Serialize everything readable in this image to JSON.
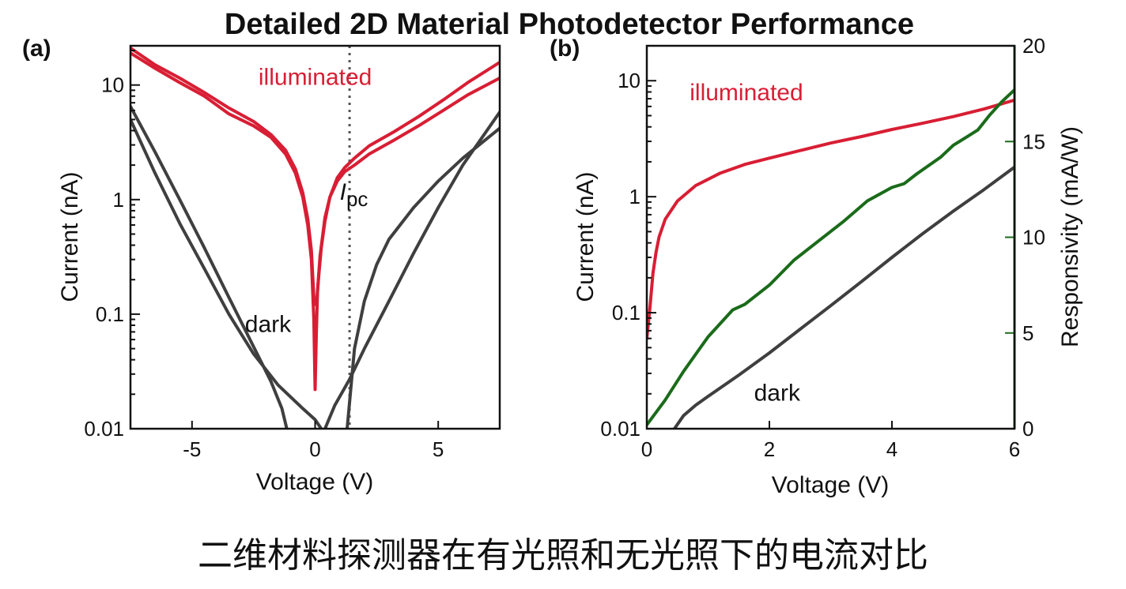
{
  "title": "Detailed 2D Material Photodetector Performance",
  "caption": "二维材料探测器在有光照和无光照下的电流对比",
  "colors": {
    "illuminated": "#d81e34",
    "dark": "#3f3f3f",
    "responsivity": "#1a6b1a",
    "axis": "#111111",
    "marker_line": "#555555"
  },
  "chart_data": [
    {
      "panel": "(a)",
      "type": "line",
      "xlabel": "Voltage (V)",
      "ylabel": "Current (nA)",
      "xlim": [
        -7.5,
        7.5
      ],
      "ylim": [
        0.01,
        22
      ],
      "yscale": "log",
      "xticks": [
        -5,
        0,
        5
      ],
      "xtick_labels": [
        "-5",
        "0",
        "5"
      ],
      "yticks": [
        0.01,
        0.1,
        1,
        10
      ],
      "ytick_labels": [
        "0.01",
        "0.1",
        "1",
        "10"
      ],
      "annotations": [
        {
          "id": "illuminated",
          "text": "illuminated",
          "x": -2.3,
          "y": 10,
          "color": "#d81e34"
        },
        {
          "id": "dark",
          "text": "dark",
          "x": -2.85,
          "y": 0.07,
          "color": "#111111"
        },
        {
          "id": "ipc",
          "text": "I",
          "subscript": "pc",
          "x": 1.0,
          "y": 1.0,
          "color": "#111111"
        }
      ],
      "vline": {
        "x": 1.4,
        "style": "dotted"
      },
      "series": [
        {
          "color": "#d81e34",
          "x": [
            -7.5,
            -6.5,
            -5.5,
            -4.5,
            -3.5,
            -2.5,
            -1.8,
            -1.2,
            -0.8,
            -0.5,
            -0.3,
            -0.15,
            -0.05,
            0.0,
            0.05,
            0.1,
            0.2,
            0.4,
            0.6,
            0.9,
            1.2,
            1.6,
            2.2,
            3.2,
            4.2,
            5.2,
            6.2,
            7.5
          ],
          "y": [
            19,
            14,
            10.5,
            8,
            5.6,
            4.4,
            3.5,
            2.5,
            1.7,
            1.05,
            0.6,
            0.3,
            0.09,
            0.022,
            0.07,
            0.16,
            0.32,
            0.7,
            1.05,
            1.45,
            1.75,
            2.0,
            2.5,
            3.3,
            4.4,
            6.0,
            8.2,
            11.5
          ]
        },
        {
          "color": "#d81e34",
          "x": [
            -7.5,
            -6.5,
            -5.5,
            -4.5,
            -3.5,
            -2.5,
            -1.8,
            -1.2,
            -0.8,
            -0.5,
            -0.3,
            -0.15,
            -0.05,
            0.05,
            0.15,
            0.25,
            0.4,
            0.6,
            0.9,
            1.2,
            1.6,
            2.2,
            3.2,
            4.2,
            5.2,
            6.2,
            7.5
          ],
          "y": [
            21,
            15,
            11.5,
            8.6,
            6.3,
            4.8,
            3.7,
            2.7,
            1.85,
            1.15,
            0.68,
            0.36,
            0.14,
            0.12,
            0.22,
            0.38,
            0.65,
            1.05,
            1.55,
            1.9,
            2.3,
            2.95,
            3.9,
            5.3,
            7.4,
            10.5,
            15.8
          ]
        },
        {
          "color": "#3f3f3f",
          "x": [
            -7.5,
            -6.5,
            -5.5,
            -4.5,
            -3.5,
            -2.5,
            -1.8,
            -1.35,
            -1.15
          ],
          "y": [
            6.5,
            2.6,
            1.0,
            0.38,
            0.14,
            0.052,
            0.026,
            0.015,
            0.01
          ]
        },
        {
          "color": "#3f3f3f",
          "x": [
            -7.5,
            -6.5,
            -5.5,
            -4.5,
            -3.5,
            -2.5,
            -1.5,
            -0.5,
            0.0,
            0.25
          ],
          "y": [
            5.0,
            1.7,
            0.62,
            0.25,
            0.1,
            0.045,
            0.024,
            0.015,
            0.012,
            0.01
          ]
        },
        {
          "color": "#3f3f3f",
          "x": [
            0.4,
            0.8,
            1.4,
            2.0,
            3.0,
            4.0,
            5.0,
            6.0,
            7.5
          ],
          "y": [
            0.01,
            0.016,
            0.027,
            0.05,
            0.13,
            0.34,
            0.85,
            2.0,
            5.8
          ]
        },
        {
          "color": "#3f3f3f",
          "x": [
            1.3,
            1.6,
            2.0,
            2.5,
            3.0,
            4.0,
            5.0,
            6.0,
            7.5
          ],
          "y": [
            0.01,
            0.05,
            0.13,
            0.27,
            0.45,
            0.85,
            1.45,
            2.3,
            4.2
          ]
        }
      ]
    },
    {
      "panel": "(b)",
      "type": "line",
      "xlabel": "Voltage (V)",
      "ylabel": "Current (nA)",
      "y2label": "Responsivity (mA/W)",
      "xlim": [
        0,
        6
      ],
      "ylim": [
        0.01,
        20
      ],
      "yscale": "log",
      "y2lim": [
        0,
        20
      ],
      "xticks": [
        0,
        2,
        4,
        6
      ],
      "xtick_labels": [
        "0",
        "2",
        "4",
        "6"
      ],
      "yticks": [
        0.01,
        0.1,
        1,
        10
      ],
      "ytick_labels": [
        "0.01",
        "0.1",
        "1",
        "10"
      ],
      "y2ticks": [
        0,
        5,
        10,
        15,
        20
      ],
      "y2tick_labels": [
        "0",
        "5",
        "10",
        "15",
        "20"
      ],
      "annotations": [
        {
          "id": "illuminated",
          "text": "illuminated",
          "x": 0.7,
          "y": 6.8,
          "color": "#d81e34"
        },
        {
          "id": "dark",
          "text": "dark",
          "x": 1.75,
          "y": 0.0175,
          "color": "#111111"
        }
      ],
      "series": [
        {
          "color": "#d81e34",
          "axis": "y",
          "x": [
            0.0,
            0.05,
            0.1,
            0.15,
            0.2,
            0.3,
            0.5,
            0.8,
            1.2,
            1.6,
            2.0,
            2.5,
            3.0,
            3.5,
            4.0,
            4.5,
            5.0,
            5.5,
            6.0
          ],
          "y": [
            0.06,
            0.11,
            0.22,
            0.33,
            0.45,
            0.64,
            0.92,
            1.25,
            1.6,
            1.9,
            2.15,
            2.5,
            2.9,
            3.3,
            3.8,
            4.3,
            4.9,
            5.7,
            6.8
          ]
        },
        {
          "color": "#3f3f3f",
          "axis": "y",
          "x": [
            0.45,
            0.6,
            0.8,
            1.0,
            1.5,
            2.0,
            2.5,
            3.0,
            3.5,
            4.0,
            4.5,
            5.0,
            5.5,
            6.0
          ],
          "y": [
            0.01,
            0.013,
            0.016,
            0.019,
            0.029,
            0.045,
            0.072,
            0.115,
            0.185,
            0.3,
            0.48,
            0.75,
            1.15,
            1.8
          ]
        },
        {
          "color": "#1a6b1a",
          "axis": "y2",
          "x": [
            0.0,
            0.3,
            0.6,
            1.0,
            1.4,
            1.6,
            2.0,
            2.4,
            2.8,
            3.2,
            3.6,
            4.0,
            4.2,
            4.4,
            4.8,
            5.0,
            5.2,
            5.4,
            5.6,
            5.8,
            6.0
          ],
          "y": [
            0.2,
            1.5,
            3.0,
            4.8,
            6.2,
            6.5,
            7.5,
            8.8,
            9.8,
            10.8,
            11.9,
            12.6,
            12.8,
            13.3,
            14.2,
            14.8,
            15.2,
            15.6,
            16.4,
            17.1,
            17.7
          ]
        }
      ]
    }
  ]
}
